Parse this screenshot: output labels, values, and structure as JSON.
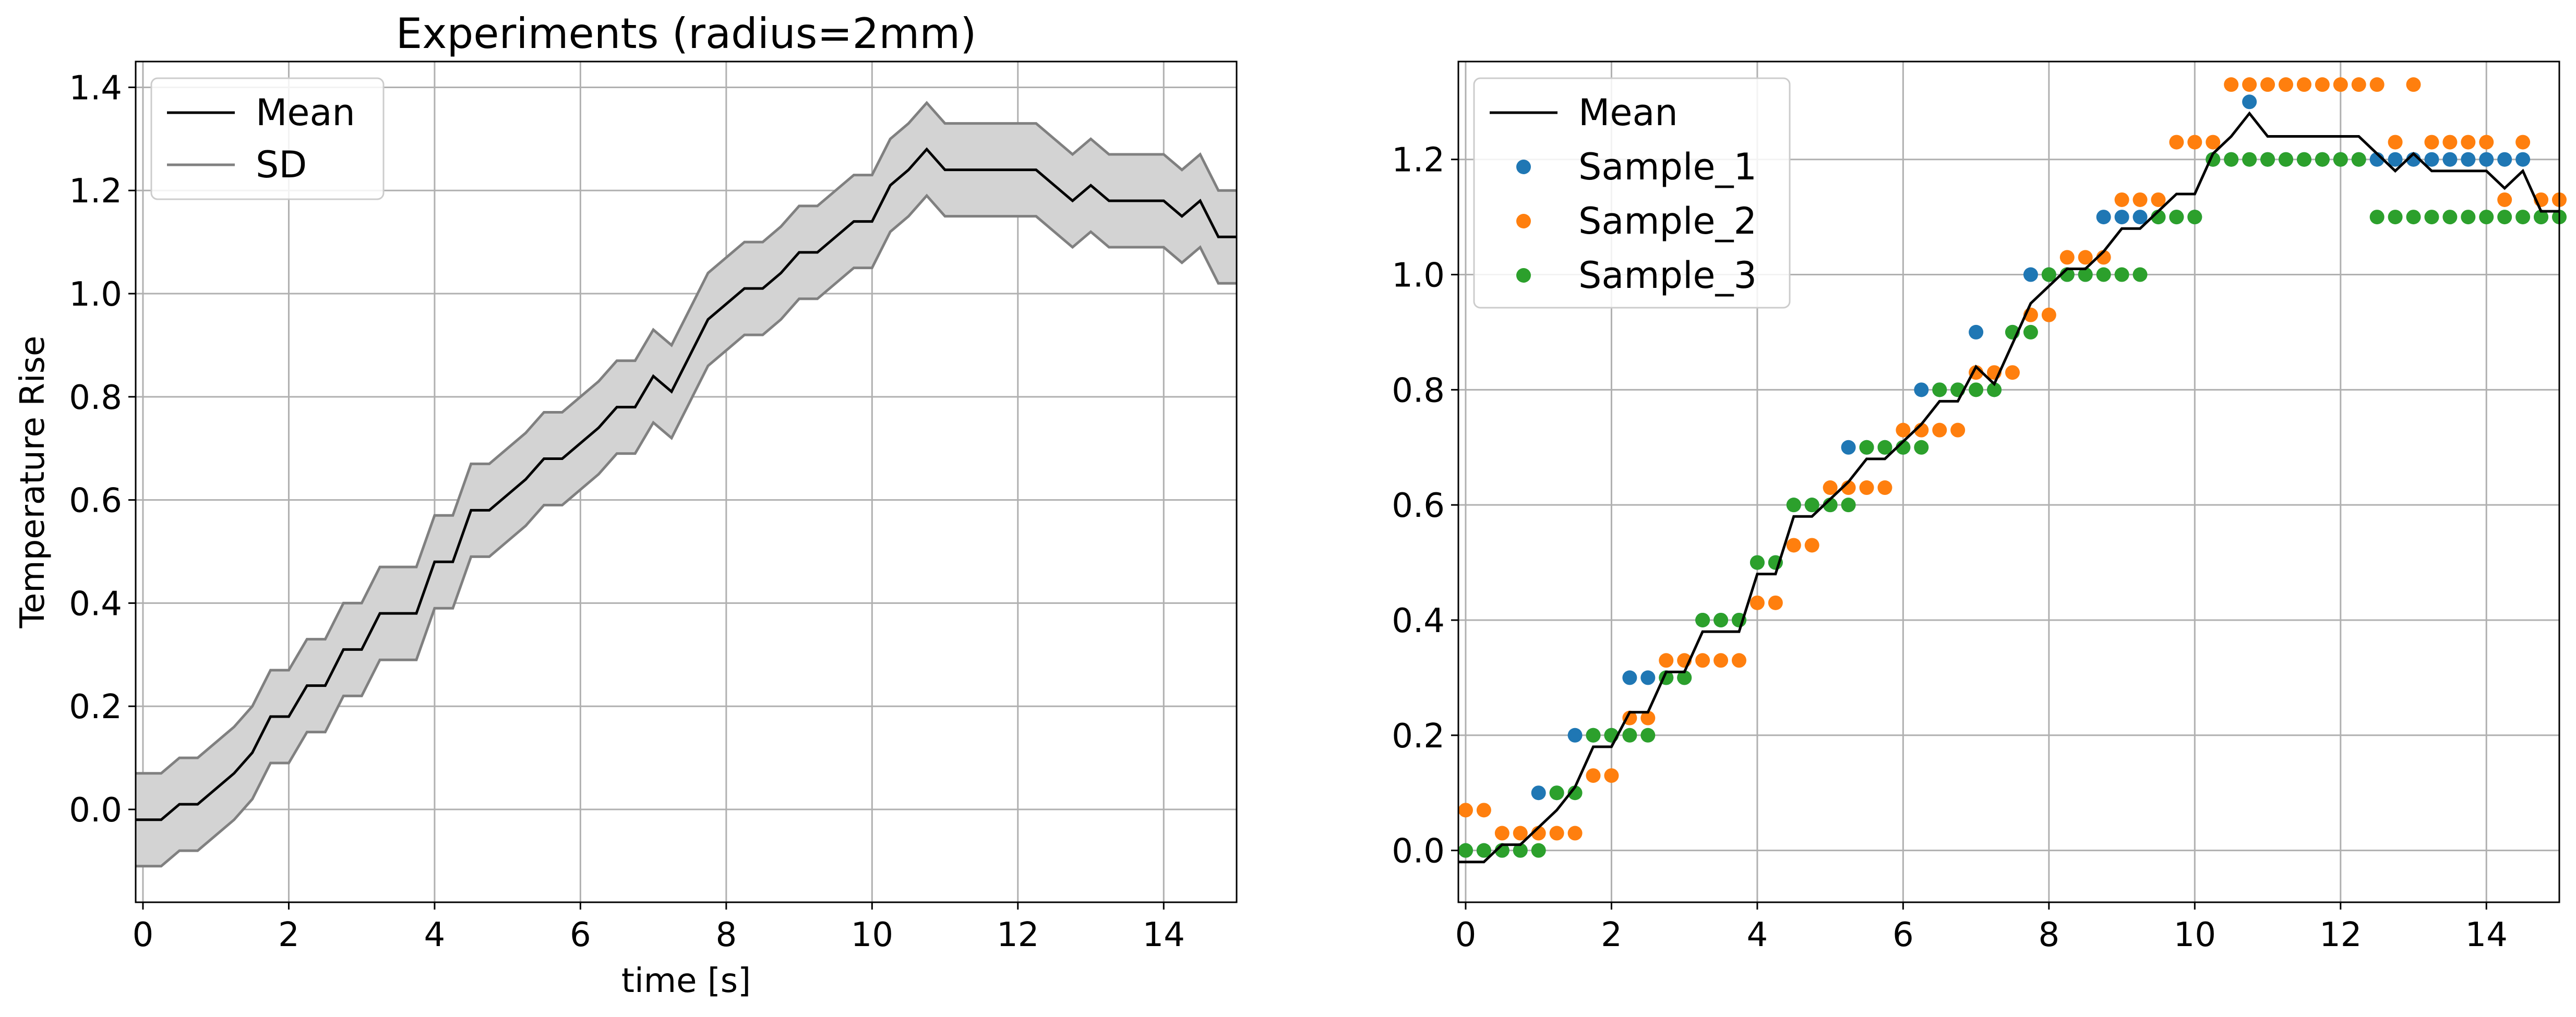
{
  "chart_data": [
    {
      "type": "line",
      "title": "Experiments (radius=2mm)",
      "xlabel": "time [s]",
      "ylabel": "Temperature Rise",
      "xlim": [
        -0.1,
        15.0
      ],
      "ylim": [
        -0.18,
        1.45
      ],
      "xticks": [
        0,
        2,
        4,
        6,
        8,
        10,
        12,
        14
      ],
      "yticks": [
        0.0,
        0.2,
        0.4,
        0.6,
        0.8,
        1.0,
        1.2,
        1.4
      ],
      "ytick_labels": [
        "0.0",
        "0.2",
        "0.4",
        "0.6",
        "0.8",
        "1.0",
        "1.2",
        "1.4"
      ],
      "grid": true,
      "legend_position": "top-left",
      "legend": [
        "Mean",
        "SD"
      ],
      "colors": {
        "mean": "#000000",
        "sd_line": "#808080",
        "sd_fill": "#d3d3d3"
      },
      "series": [
        {
          "name": "Mean",
          "x": [
            -0.1,
            0.25,
            0.5,
            0.75,
            1.0,
            1.25,
            1.5,
            1.75,
            2.0,
            2.25,
            2.5,
            2.75,
            3.0,
            3.25,
            3.5,
            3.75,
            4.0,
            4.25,
            4.5,
            4.75,
            5.0,
            5.25,
            5.5,
            5.75,
            6.0,
            6.25,
            6.5,
            6.75,
            7.0,
            7.25,
            7.5,
            7.75,
            8.0,
            8.25,
            8.5,
            8.75,
            9.0,
            9.25,
            9.5,
            9.75,
            10.0,
            10.25,
            10.5,
            10.75,
            11.0,
            11.25,
            11.5,
            11.75,
            12.0,
            12.25,
            12.5,
            12.75,
            13.0,
            13.25,
            13.5,
            13.75,
            14.0,
            14.25,
            14.5,
            14.75,
            15.0
          ],
          "y": [
            -0.02,
            -0.02,
            0.01,
            0.01,
            0.04,
            0.07,
            0.11,
            0.18,
            0.18,
            0.24,
            0.24,
            0.31,
            0.31,
            0.38,
            0.38,
            0.38,
            0.48,
            0.48,
            0.58,
            0.58,
            0.61,
            0.64,
            0.68,
            0.68,
            0.71,
            0.74,
            0.78,
            0.78,
            0.84,
            0.81,
            0.88,
            0.95,
            0.98,
            1.01,
            1.01,
            1.04,
            1.08,
            1.08,
            1.11,
            1.14,
            1.14,
            1.21,
            1.24,
            1.28,
            1.24,
            1.24,
            1.24,
            1.24,
            1.24,
            1.24,
            1.21,
            1.18,
            1.21,
            1.18,
            1.18,
            1.18,
            1.18,
            1.15,
            1.18,
            1.11,
            1.11
          ]
        },
        {
          "name": "SD",
          "x": [
            -0.1,
            0.25,
            0.5,
            0.75,
            1.0,
            1.25,
            1.5,
            1.75,
            2.0,
            2.25,
            2.5,
            2.75,
            3.0,
            3.25,
            3.5,
            3.75,
            4.0,
            4.25,
            4.5,
            4.75,
            5.0,
            5.25,
            5.5,
            5.75,
            6.0,
            6.25,
            6.5,
            6.75,
            7.0,
            7.25,
            7.5,
            7.75,
            8.0,
            8.25,
            8.5,
            8.75,
            9.0,
            9.25,
            9.5,
            9.75,
            10.0,
            10.25,
            10.5,
            10.75,
            11.0,
            11.25,
            11.5,
            11.75,
            12.0,
            12.25,
            12.5,
            12.75,
            13.0,
            13.25,
            13.5,
            13.75,
            14.0,
            14.25,
            14.5,
            14.75,
            15.0
          ],
          "upper": [
            0.07,
            0.07,
            0.1,
            0.1,
            0.13,
            0.16,
            0.2,
            0.27,
            0.27,
            0.33,
            0.33,
            0.4,
            0.4,
            0.47,
            0.47,
            0.47,
            0.57,
            0.57,
            0.67,
            0.67,
            0.7,
            0.73,
            0.77,
            0.77,
            0.8,
            0.83,
            0.87,
            0.87,
            0.93,
            0.9,
            0.97,
            1.04,
            1.07,
            1.1,
            1.1,
            1.13,
            1.17,
            1.17,
            1.2,
            1.23,
            1.23,
            1.3,
            1.33,
            1.37,
            1.33,
            1.33,
            1.33,
            1.33,
            1.33,
            1.33,
            1.3,
            1.27,
            1.3,
            1.27,
            1.27,
            1.27,
            1.27,
            1.24,
            1.27,
            1.2,
            1.2
          ],
          "lower": [
            -0.11,
            -0.11,
            -0.08,
            -0.08,
            -0.05,
            -0.02,
            0.02,
            0.09,
            0.09,
            0.15,
            0.15,
            0.22,
            0.22,
            0.29,
            0.29,
            0.29,
            0.39,
            0.39,
            0.49,
            0.49,
            0.52,
            0.55,
            0.59,
            0.59,
            0.62,
            0.65,
            0.69,
            0.69,
            0.75,
            0.72,
            0.79,
            0.86,
            0.89,
            0.92,
            0.92,
            0.95,
            0.99,
            0.99,
            1.02,
            1.05,
            1.05,
            1.12,
            1.15,
            1.19,
            1.15,
            1.15,
            1.15,
            1.15,
            1.15,
            1.15,
            1.12,
            1.09,
            1.12,
            1.09,
            1.09,
            1.09,
            1.09,
            1.06,
            1.09,
            1.02,
            1.02
          ]
        }
      ]
    },
    {
      "type": "scatter",
      "title": "",
      "xlabel": "",
      "ylabel": "",
      "xlim": [
        -0.1,
        15.0
      ],
      "ylim": [
        -0.09,
        1.37
      ],
      "xticks": [
        0,
        2,
        4,
        6,
        8,
        10,
        12,
        14
      ],
      "yticks": [
        0.0,
        0.2,
        0.4,
        0.6,
        0.8,
        1.0,
        1.2
      ],
      "ytick_labels": [
        "0.0",
        "0.2",
        "0.4",
        "0.6",
        "0.8",
        "1.0",
        "1.2"
      ],
      "grid": true,
      "legend_position": "top-left",
      "legend": [
        "Mean",
        "Sample_1",
        "Sample_2",
        "Sample_3"
      ],
      "colors": {
        "Mean": "#000000",
        "Sample_1": "#1f77b4",
        "Sample_2": "#ff7f0e",
        "Sample_3": "#2ca02c"
      },
      "series": [
        {
          "name": "Mean",
          "type": "line",
          "x": [
            -0.1,
            0.25,
            0.5,
            0.75,
            1.0,
            1.25,
            1.5,
            1.75,
            2.0,
            2.25,
            2.5,
            2.75,
            3.0,
            3.25,
            3.5,
            3.75,
            4.0,
            4.25,
            4.5,
            4.75,
            5.0,
            5.25,
            5.5,
            5.75,
            6.0,
            6.25,
            6.5,
            6.75,
            7.0,
            7.25,
            7.5,
            7.75,
            8.0,
            8.25,
            8.5,
            8.75,
            9.0,
            9.25,
            9.5,
            9.75,
            10.0,
            10.25,
            10.5,
            10.75,
            11.0,
            11.25,
            11.5,
            11.75,
            12.0,
            12.25,
            12.5,
            12.75,
            13.0,
            13.25,
            13.5,
            13.75,
            14.0,
            14.25,
            14.5,
            14.75,
            15.0
          ],
          "y": [
            -0.02,
            -0.02,
            0.01,
            0.01,
            0.04,
            0.07,
            0.11,
            0.18,
            0.18,
            0.24,
            0.24,
            0.31,
            0.31,
            0.38,
            0.38,
            0.38,
            0.48,
            0.48,
            0.58,
            0.58,
            0.61,
            0.64,
            0.68,
            0.68,
            0.71,
            0.74,
            0.78,
            0.78,
            0.84,
            0.81,
            0.88,
            0.95,
            0.98,
            1.01,
            1.01,
            1.04,
            1.08,
            1.08,
            1.11,
            1.14,
            1.14,
            1.21,
            1.24,
            1.28,
            1.24,
            1.24,
            1.24,
            1.24,
            1.24,
            1.24,
            1.21,
            1.18,
            1.21,
            1.18,
            1.18,
            1.18,
            1.18,
            1.15,
            1.18,
            1.11,
            1.11
          ]
        },
        {
          "name": "Sample_1",
          "x": [
            0,
            0.25,
            0.5,
            0.75,
            1.0,
            1.25,
            1.5,
            1.75,
            2.0,
            2.25,
            2.5,
            2.75,
            3.0,
            3.25,
            3.5,
            3.75,
            4.0,
            4.25,
            4.5,
            4.75,
            5.0,
            5.25,
            5.5,
            5.75,
            6.0,
            6.25,
            6.5,
            6.75,
            7.0,
            7.25,
            7.5,
            7.75,
            8.0,
            8.25,
            8.5,
            8.75,
            9.0,
            9.25,
            9.5,
            9.75,
            10.0,
            10.25,
            10.5,
            10.75,
            11.0,
            11.25,
            11.5,
            11.75,
            12.0,
            12.25,
            12.5,
            12.75,
            13.0,
            13.25,
            13.5,
            13.75,
            14.0,
            14.25,
            14.5,
            14.75
          ],
          "y": [
            0.0,
            0.0,
            0.0,
            0.0,
            0.1,
            0.1,
            0.2,
            0.2,
            0.2,
            0.3,
            0.3,
            0.3,
            0.3,
            0.4,
            0.4,
            0.4,
            0.5,
            0.5,
            0.6,
            0.6,
            0.6,
            0.7,
            0.7,
            0.7,
            0.7,
            0.8,
            0.8,
            0.8,
            0.9,
            0.8,
            0.9,
            1.0,
            1.0,
            1.0,
            1.0,
            1.1,
            1.1,
            1.1,
            1.1,
            1.1,
            1.1,
            1.2,
            1.2,
            1.3,
            1.2,
            1.2,
            1.2,
            1.2,
            1.2,
            1.2,
            1.2,
            1.2,
            1.2,
            1.2,
            1.2,
            1.2,
            1.2,
            1.2,
            1.2,
            1.1
          ]
        },
        {
          "name": "Sample_2",
          "x": [
            0,
            0.25,
            0.5,
            0.75,
            1.0,
            1.25,
            1.5,
            1.75,
            2.0,
            2.25,
            2.5,
            2.75,
            3.0,
            3.25,
            3.5,
            3.75,
            4.0,
            4.25,
            4.5,
            4.75,
            5.0,
            5.25,
            5.5,
            5.75,
            6.0,
            6.25,
            6.5,
            6.75,
            7.0,
            7.25,
            7.5,
            7.75,
            8.0,
            8.25,
            8.5,
            8.75,
            9.0,
            9.25,
            9.5,
            9.75,
            10.0,
            10.25,
            10.5,
            10.75,
            11.0,
            11.25,
            11.5,
            11.75,
            12.0,
            12.25,
            12.5,
            12.75,
            13.0,
            13.25,
            13.5,
            13.75,
            14.0,
            14.25,
            14.5,
            14.75,
            15.0
          ],
          "y": [
            0.07,
            0.07,
            0.03,
            0.03,
            0.03,
            0.03,
            0.03,
            0.13,
            0.13,
            0.23,
            0.23,
            0.33,
            0.33,
            0.33,
            0.33,
            0.33,
            0.43,
            0.43,
            0.53,
            0.53,
            0.63,
            0.63,
            0.63,
            0.63,
            0.73,
            0.73,
            0.73,
            0.73,
            0.83,
            0.83,
            0.83,
            0.93,
            0.93,
            1.03,
            1.03,
            1.03,
            1.13,
            1.13,
            1.13,
            1.23,
            1.23,
            1.23,
            1.33,
            1.33,
            1.33,
            1.33,
            1.33,
            1.33,
            1.33,
            1.33,
            1.33,
            1.23,
            1.33,
            1.23,
            1.23,
            1.23,
            1.23,
            1.13,
            1.23,
            1.13,
            1.13
          ]
        },
        {
          "name": "Sample_3",
          "x": [
            0,
            0.25,
            0.5,
            0.75,
            1.0,
            1.25,
            1.5,
            1.75,
            2.0,
            2.25,
            2.5,
            2.75,
            3.0,
            3.25,
            3.5,
            3.75,
            4.0,
            4.25,
            4.5,
            4.75,
            5.0,
            5.25,
            5.5,
            5.75,
            6.0,
            6.25,
            6.5,
            6.75,
            7.0,
            7.25,
            7.5,
            7.75,
            8.0,
            8.25,
            8.5,
            8.75,
            9.0,
            9.25,
            9.5,
            9.75,
            10.0,
            10.25,
            10.5,
            10.75,
            11.0,
            11.25,
            11.5,
            11.75,
            12.0,
            12.25,
            12.5,
            12.75,
            13.0,
            13.25,
            13.5,
            13.75,
            14.0,
            14.25,
            14.5,
            14.75,
            15.0
          ],
          "y": [
            0.0,
            0.0,
            0.0,
            0.0,
            0.0,
            0.1,
            0.1,
            0.2,
            0.2,
            0.2,
            0.2,
            0.3,
            0.3,
            0.4,
            0.4,
            0.4,
            0.5,
            0.5,
            0.6,
            0.6,
            0.6,
            0.6,
            0.7,
            0.7,
            0.7,
            0.7,
            0.8,
            0.8,
            0.8,
            0.8,
            0.9,
            0.9,
            1.0,
            1.0,
            1.0,
            1.0,
            1.0,
            1.0,
            1.1,
            1.1,
            1.1,
            1.2,
            1.2,
            1.2,
            1.2,
            1.2,
            1.2,
            1.2,
            1.2,
            1.2,
            1.1,
            1.1,
            1.1,
            1.1,
            1.1,
            1.1,
            1.1,
            1.1,
            1.1,
            1.1,
            1.1
          ]
        }
      ]
    }
  ]
}
